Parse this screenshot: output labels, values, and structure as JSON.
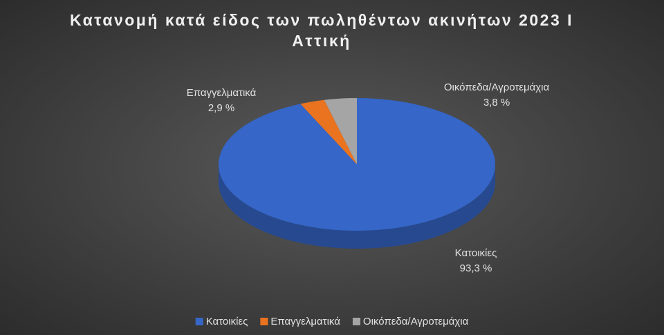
{
  "chart_data": {
    "type": "pie",
    "title": "Κατανομή κατά είδος των πωληθέντων ακινήτων 2023 Ι Αττική",
    "categories": [
      "Κατοικίες",
      "Επαγγελματικά",
      "Οικόπεδα/Αγροτεμάχια"
    ],
    "values": [
      93.3,
      2.9,
      3.8
    ],
    "value_labels": [
      "93,3 %",
      "2,9 %",
      "3,8 %"
    ],
    "colors": [
      "#3566c8",
      "#ea7320",
      "#a5a5a5"
    ],
    "legend": "bottom"
  }
}
